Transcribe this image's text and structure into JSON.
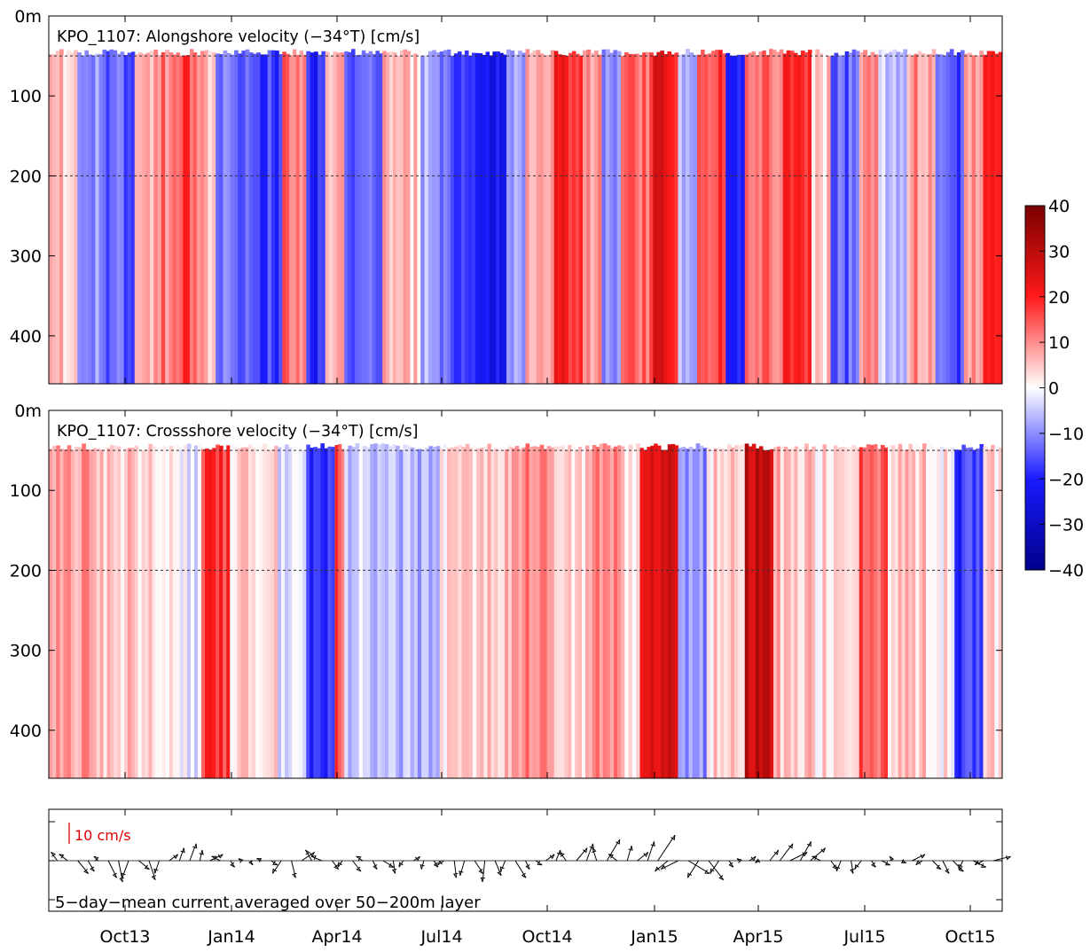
{
  "chart_data": [
    {
      "type": "heatmap",
      "title": "KPO_1107: Alongshore velocity (−34°T) [cm/s]",
      "ylabel": "",
      "ylim": [
        460,
        0
      ],
      "y_ticks": [
        "0m",
        "100",
        "200",
        "300",
        "400"
      ],
      "y_tick_values": [
        0,
        100,
        200,
        300,
        400
      ],
      "reference_lines_m": [
        50,
        200
      ],
      "x_ticks": [
        "Oct13",
        "Jan14",
        "Apr14",
        "Jul14",
        "Oct14",
        "Jan15",
        "Apr15",
        "Jul15",
        "Oct15"
      ],
      "bands": [
        {
          "from": 0.0,
          "to": 0.03,
          "value": 6
        },
        {
          "from": 0.03,
          "to": 0.06,
          "value": -8
        },
        {
          "from": 0.06,
          "to": 0.09,
          "value": -14
        },
        {
          "from": 0.09,
          "to": 0.11,
          "value": 4
        },
        {
          "from": 0.11,
          "to": 0.13,
          "value": 12
        },
        {
          "from": 0.13,
          "to": 0.155,
          "value": 16
        },
        {
          "from": 0.155,
          "to": 0.175,
          "value": 6
        },
        {
          "from": 0.175,
          "to": 0.21,
          "value": -12
        },
        {
          "from": 0.21,
          "to": 0.245,
          "value": -16
        },
        {
          "from": 0.245,
          "to": 0.27,
          "value": 12
        },
        {
          "from": 0.27,
          "to": 0.29,
          "value": -20
        },
        {
          "from": 0.29,
          "to": 0.31,
          "value": 8
        },
        {
          "from": 0.31,
          "to": 0.35,
          "value": -12
        },
        {
          "from": 0.35,
          "to": 0.39,
          "value": 5
        },
        {
          "from": 0.39,
          "to": 0.41,
          "value": -8
        },
        {
          "from": 0.41,
          "to": 0.44,
          "value": -14
        },
        {
          "from": 0.44,
          "to": 0.48,
          "value": -22
        },
        {
          "from": 0.48,
          "to": 0.5,
          "value": -6
        },
        {
          "from": 0.5,
          "to": 0.53,
          "value": 6
        },
        {
          "from": 0.53,
          "to": 0.56,
          "value": 20
        },
        {
          "from": 0.56,
          "to": 0.58,
          "value": 10
        },
        {
          "from": 0.58,
          "to": 0.6,
          "value": -10
        },
        {
          "from": 0.6,
          "to": 0.63,
          "value": 14
        },
        {
          "from": 0.63,
          "to": 0.66,
          "value": 22
        },
        {
          "from": 0.66,
          "to": 0.68,
          "value": -6
        },
        {
          "from": 0.68,
          "to": 0.71,
          "value": 16
        },
        {
          "from": 0.71,
          "to": 0.73,
          "value": -18
        },
        {
          "from": 0.73,
          "to": 0.77,
          "value": 12
        },
        {
          "from": 0.77,
          "to": 0.8,
          "value": 20
        },
        {
          "from": 0.8,
          "to": 0.82,
          "value": 4
        },
        {
          "from": 0.82,
          "to": 0.85,
          "value": -14
        },
        {
          "from": 0.85,
          "to": 0.87,
          "value": 8
        },
        {
          "from": 0.87,
          "to": 0.9,
          "value": -6
        },
        {
          "from": 0.9,
          "to": 0.93,
          "value": 10
        },
        {
          "from": 0.93,
          "to": 0.96,
          "value": -16
        },
        {
          "from": 0.96,
          "to": 0.98,
          "value": 8
        },
        {
          "from": 0.98,
          "to": 1.0,
          "value": 24
        }
      ]
    },
    {
      "type": "heatmap",
      "title": "KPO_1107: Crossshore velocity (−34°T) [cm/s]",
      "ylabel": "",
      "ylim": [
        460,
        0
      ],
      "y_ticks": [
        "0m",
        "100",
        "200",
        "300",
        "400"
      ],
      "y_tick_values": [
        0,
        100,
        200,
        300,
        400
      ],
      "reference_lines_m": [
        50,
        200
      ],
      "x_ticks": [
        "Oct13",
        "Jan14",
        "Apr14",
        "Jul14",
        "Oct14",
        "Jan15",
        "Apr15",
        "Jul15",
        "Oct15"
      ],
      "bands": [
        {
          "from": 0.0,
          "to": 0.05,
          "value": 8
        },
        {
          "from": 0.05,
          "to": 0.09,
          "value": 5
        },
        {
          "from": 0.09,
          "to": 0.13,
          "value": 2
        },
        {
          "from": 0.13,
          "to": 0.16,
          "value": -2
        },
        {
          "from": 0.16,
          "to": 0.19,
          "value": 18
        },
        {
          "from": 0.19,
          "to": 0.24,
          "value": 3
        },
        {
          "from": 0.24,
          "to": 0.27,
          "value": -2
        },
        {
          "from": 0.27,
          "to": 0.3,
          "value": -18
        },
        {
          "from": 0.3,
          "to": 0.31,
          "value": 14
        },
        {
          "from": 0.31,
          "to": 0.36,
          "value": -4
        },
        {
          "from": 0.36,
          "to": 0.41,
          "value": -6
        },
        {
          "from": 0.41,
          "to": 0.46,
          "value": 3
        },
        {
          "from": 0.46,
          "to": 0.5,
          "value": 6
        },
        {
          "from": 0.5,
          "to": 0.53,
          "value": 10
        },
        {
          "from": 0.53,
          "to": 0.57,
          "value": 4
        },
        {
          "from": 0.57,
          "to": 0.6,
          "value": 12
        },
        {
          "from": 0.6,
          "to": 0.62,
          "value": 2
        },
        {
          "from": 0.62,
          "to": 0.66,
          "value": 26
        },
        {
          "from": 0.66,
          "to": 0.69,
          "value": -10
        },
        {
          "from": 0.69,
          "to": 0.73,
          "value": 4
        },
        {
          "from": 0.73,
          "to": 0.76,
          "value": 28
        },
        {
          "from": 0.76,
          "to": 0.8,
          "value": 6
        },
        {
          "from": 0.8,
          "to": 0.85,
          "value": 3
        },
        {
          "from": 0.85,
          "to": 0.88,
          "value": 14
        },
        {
          "from": 0.88,
          "to": 0.92,
          "value": 4
        },
        {
          "from": 0.92,
          "to": 0.95,
          "value": 2
        },
        {
          "from": 0.95,
          "to": 0.98,
          "value": -18
        },
        {
          "from": 0.98,
          "to": 1.0,
          "value": 4
        }
      ]
    }
  ],
  "colorbar": {
    "ticks": [
      "40",
      "30",
      "20",
      "10",
      "0",
      "−10",
      "−20",
      "−30",
      "−40"
    ],
    "tick_values": [
      40,
      30,
      20,
      10,
      0,
      -10,
      -20,
      -30,
      -40
    ],
    "range": [
      -40,
      40
    ],
    "high_color": "#7a0000",
    "mid_color": "#ffffff",
    "low_color": "#00008b",
    "upper_color": "#ff1a1a",
    "lower_color": "#1a1aff"
  },
  "vector_panel": {
    "type": "quiver",
    "caption": "5−day−mean current averaged over 50−200m layer",
    "scale_label": "10 cm/s",
    "scale_value_cm_s": 10,
    "x_ticks": [
      "Oct13",
      "Jan14",
      "Apr14",
      "Jul14",
      "Oct14",
      "Jan15",
      "Apr15",
      "Jul15",
      "Oct15"
    ],
    "vectors": [
      [
        -3,
        4
      ],
      [
        -4,
        3
      ],
      [
        5,
        -6
      ],
      [
        3,
        -5
      ],
      [
        -2,
        2
      ],
      [
        4,
        -8
      ],
      [
        2,
        -10
      ],
      [
        -3,
        -8
      ],
      [
        5,
        -4
      ],
      [
        3,
        -9
      ],
      [
        -2,
        -6
      ],
      [
        4,
        3
      ],
      [
        2,
        6
      ],
      [
        3,
        8
      ],
      [
        1,
        5
      ],
      [
        6,
        3
      ],
      [
        -4,
        2
      ],
      [
        2,
        -3
      ],
      [
        -1,
        1
      ],
      [
        1,
        -2
      ],
      [
        -2,
        1
      ],
      [
        3,
        -2
      ],
      [
        -4,
        -6
      ],
      [
        2,
        -8
      ],
      [
        6,
        4
      ],
      [
        -3,
        5
      ],
      [
        -5,
        2
      ],
      [
        3,
        -4
      ],
      [
        -2,
        -3
      ],
      [
        4,
        -5
      ],
      [
        -3,
        2
      ],
      [
        2,
        -4
      ],
      [
        5,
        -3
      ],
      [
        1,
        -6
      ],
      [
        -2,
        -3
      ],
      [
        3,
        2
      ],
      [
        -1,
        -4
      ],
      [
        2,
        -3
      ],
      [
        -3,
        -2
      ],
      [
        1,
        -8
      ],
      [
        -2,
        -7
      ],
      [
        4,
        -6
      ],
      [
        -1,
        -10
      ],
      [
        3,
        -7
      ],
      [
        -2,
        -5
      ],
      [
        5,
        -8
      ],
      [
        2,
        -4
      ],
      [
        3,
        -2
      ],
      [
        4,
        3
      ],
      [
        2,
        5
      ],
      [
        -3,
        4
      ],
      [
        5,
        6
      ],
      [
        3,
        8
      ],
      [
        -2,
        6
      ],
      [
        6,
        10
      ],
      [
        -4,
        3
      ],
      [
        2,
        7
      ],
      [
        5,
        4
      ],
      [
        3,
        9
      ],
      [
        8,
        12
      ],
      [
        -6,
        -5
      ],
      [
        -8,
        -4
      ],
      [
        10,
        -6
      ],
      [
        -5,
        -8
      ],
      [
        7,
        -9
      ],
      [
        -4,
        -6
      ],
      [
        2,
        -3
      ],
      [
        -1,
        1
      ],
      [
        3,
        2
      ],
      [
        -2,
        -1
      ],
      [
        4,
        5
      ],
      [
        6,
        8
      ],
      [
        8,
        4
      ],
      [
        5,
        9
      ],
      [
        7,
        6
      ],
      [
        -4,
        2
      ],
      [
        3,
        -4
      ],
      [
        -2,
        -5
      ],
      [
        1,
        -6
      ],
      [
        -3,
        -4
      ],
      [
        2,
        -3
      ],
      [
        4,
        -2
      ],
      [
        -1,
        2
      ],
      [
        2,
        -1
      ],
      [
        6,
        3
      ],
      [
        -3,
        -2
      ],
      [
        4,
        -4
      ],
      [
        3,
        -6
      ],
      [
        5,
        -5
      ],
      [
        -2,
        -4
      ],
      [
        6,
        -3
      ],
      [
        -4,
        -2
      ],
      [
        8,
        2
      ]
    ]
  }
}
